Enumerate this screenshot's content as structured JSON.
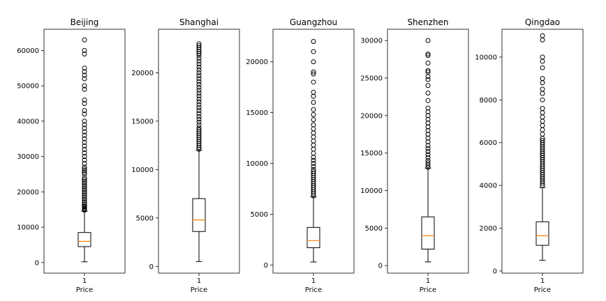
{
  "chart_data": [
    {
      "type": "box",
      "title": "Beijing",
      "xlabel": "Price",
      "xticks": [
        "1"
      ],
      "ylim": [
        -3000,
        66000
      ],
      "yticks": [
        0,
        10000,
        20000,
        30000,
        40000,
        50000,
        60000
      ],
      "box": {
        "whisker_low": 200,
        "q1": 4500,
        "median": 6000,
        "q3": 8500,
        "whisker_high": 14500
      },
      "fliers": [
        14800,
        15000,
        15200,
        15500,
        15800,
        16000,
        16500,
        17000,
        17500,
        18000,
        18500,
        19000,
        19500,
        20000,
        20500,
        21000,
        21500,
        22000,
        22500,
        23000,
        23500,
        24000,
        25000,
        25500,
        26000,
        26500,
        27000,
        28000,
        29000,
        30000,
        31000,
        32000,
        33000,
        34000,
        35000,
        36000,
        37000,
        38000,
        39000,
        40000,
        42000,
        43000,
        45000,
        46000,
        49000,
        50000,
        52000,
        53000,
        54000,
        55000,
        59000,
        60000,
        63000
      ]
    },
    {
      "type": "box",
      "title": "Shanghai",
      "xlabel": "Price",
      "xticks": [
        "1"
      ],
      "ylim": [
        -700,
        24500
      ],
      "yticks": [
        0,
        5000,
        10000,
        15000,
        20000
      ],
      "box": {
        "whisker_low": 500,
        "q1": 3600,
        "median": 4800,
        "q3": 7000,
        "whisker_high": 12000
      },
      "fliers": [
        12100,
        12300,
        12500,
        12700,
        12900,
        13100,
        13300,
        13500,
        13700,
        13900,
        14100,
        14300,
        14600,
        14900,
        15200,
        15500,
        15800,
        16100,
        16400,
        16700,
        17000,
        17300,
        17600,
        17900,
        18200,
        18500,
        18800,
        19100,
        19400,
        19700,
        20000,
        20300,
        20600,
        20900,
        21200,
        21500,
        21800,
        22000,
        22200,
        22400,
        22600,
        22800,
        23000
      ]
    },
    {
      "type": "box",
      "title": "Guangzhou",
      "xlabel": "Price",
      "xticks": [
        "1"
      ],
      "ylim": [
        -800,
        23200
      ],
      "yticks": [
        0,
        5000,
        10000,
        15000,
        20000
      ],
      "box": {
        "whisker_low": 300,
        "q1": 1700,
        "median": 2400,
        "q3": 3700,
        "whisker_high": 6700
      },
      "fliers": [
        6800,
        7000,
        7200,
        7400,
        7600,
        7800,
        8000,
        8200,
        8400,
        8600,
        8800,
        9000,
        9200,
        9400,
        9700,
        10000,
        10300,
        10600,
        11000,
        11400,
        11800,
        12200,
        12600,
        13000,
        13400,
        13800,
        14300,
        14800,
        15300,
        16000,
        16600,
        17000,
        18000,
        18800,
        19000,
        20000,
        21000,
        22000
      ]
    },
    {
      "type": "box",
      "title": "Shenzhen",
      "xlabel": "Price",
      "xticks": [
        "1"
      ],
      "ylim": [
        -1000,
        31500
      ],
      "yticks": [
        0,
        5000,
        10000,
        15000,
        20000,
        25000,
        30000
      ],
      "box": {
        "whisker_low": 500,
        "q1": 2200,
        "median": 4000,
        "q3": 6500,
        "whisker_high": 13000
      },
      "fliers": [
        13100,
        13400,
        13700,
        14000,
        14400,
        14800,
        15200,
        15600,
        16000,
        16500,
        17000,
        17500,
        18000,
        18500,
        19000,
        19500,
        20000,
        20500,
        21000,
        22000,
        23000,
        24000,
        24800,
        25200,
        25800,
        26000,
        27000,
        28000,
        28200,
        30000
      ]
    },
    {
      "type": "box",
      "title": "Qingdao",
      "xlabel": "Price",
      "xticks": [
        "1"
      ],
      "ylim": [
        -100,
        11300
      ],
      "yticks": [
        0,
        2000,
        4000,
        6000,
        8000,
        10000
      ],
      "box": {
        "whisker_low": 500,
        "q1": 1200,
        "median": 1650,
        "q3": 2300,
        "whisker_high": 3900
      },
      "fliers": [
        4000,
        4100,
        4200,
        4300,
        4400,
        4500,
        4600,
        4700,
        4800,
        4900,
        5000,
        5100,
        5200,
        5300,
        5400,
        5500,
        5600,
        5700,
        5800,
        5900,
        6000,
        6100,
        6200,
        6400,
        6600,
        6800,
        7000,
        7200,
        7400,
        7600,
        8000,
        8300,
        8500,
        8800,
        9000,
        9500,
        9800,
        10000,
        10800,
        11000
      ]
    }
  ]
}
